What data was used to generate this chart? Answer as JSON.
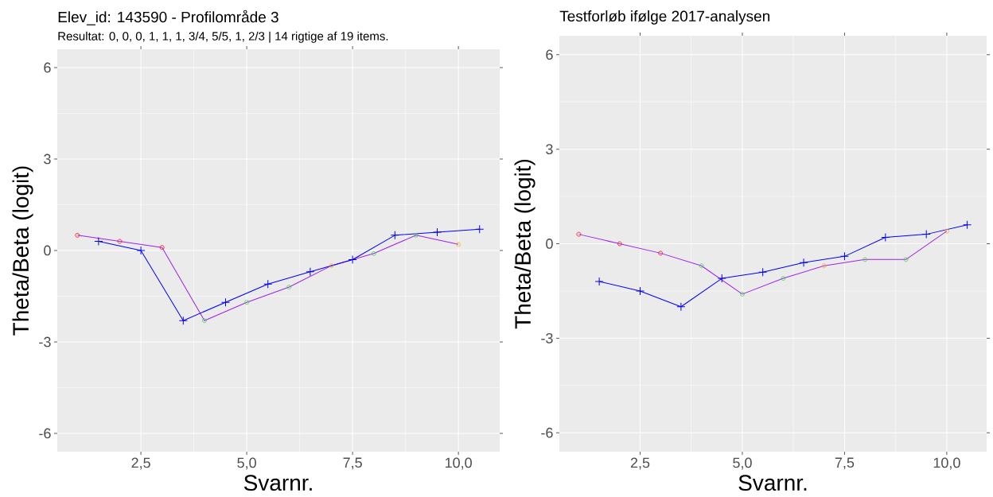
{
  "chart_data": [
    {
      "type": "line",
      "title": "Elev_id: 143590 - Profilområde 3",
      "subtitle": "Resultat: 0, 0, 0, 1, 1, 1, 3/4, 5/5, 1, 2/3 | 14  rigtige af 19 items.",
      "xlabel": "Svarnr.",
      "ylabel": "Theta/Beta (logit)",
      "xlim": [
        0.525,
        10.975
      ],
      "ylim": [
        -6.6,
        6.6
      ],
      "xticks": [
        {
          "value": 2.5,
          "label": "2,5"
        },
        {
          "value": 5,
          "label": "5,0"
        },
        {
          "value": 7.5,
          "label": "7,5"
        },
        {
          "value": 10,
          "label": "10,0"
        }
      ],
      "yticks": [
        -6,
        -3,
        0,
        3,
        6
      ],
      "grid": true,
      "series": [
        {
          "color": "#a020f0",
          "marker": "circle",
          "x": [
            1,
            2,
            3,
            4,
            5,
            6,
            7,
            8,
            9,
            10
          ],
          "values": [
            0.5,
            0.3,
            0.1,
            -2.3,
            -1.7,
            -1.2,
            -0.5,
            -0.1,
            0.5,
            0.2
          ],
          "colors": [
            "#ff0000",
            "#ff0000",
            "#ff0000",
            "#33dd33",
            "#33dd33",
            "#33dd33",
            "#ffa500",
            "#33dd33",
            "#33dd33",
            "#ffa500"
          ]
        },
        {
          "color": "#0000ff",
          "marker": "cross",
          "x": [
            1.5,
            2.5,
            3.5,
            4.5,
            5.5,
            6.5,
            7.5,
            8.5,
            9.5,
            10.5
          ],
          "values": [
            0.3,
            0,
            -2.3,
            -1.7,
            -1.1,
            -0.7,
            -0.3,
            0.5,
            0.6,
            0.7
          ]
        }
      ]
    },
    {
      "type": "line",
      "title": "Testforløb ifølge 2017-analysen",
      "xlabel": "Svarnr.",
      "ylabel": "Theta/Beta (logit)",
      "xlim": [
        0.525,
        10.975
      ],
      "ylim": [
        -6.6,
        6.6
      ],
      "xticks": [
        {
          "value": 2.5,
          "label": "2,5"
        },
        {
          "value": 5,
          "label": "5,0"
        },
        {
          "value": 7.5,
          "label": "7,5"
        },
        {
          "value": 10,
          "label": "10,0"
        }
      ],
      "yticks": [
        -6,
        -3,
        0,
        3,
        6
      ],
      "grid": true,
      "series": [
        {
          "color": "#a020f0",
          "marker": "circle",
          "x": [
            1,
            2,
            3,
            4,
            5,
            6,
            7,
            8,
            9,
            10
          ],
          "values": [
            0.3,
            0.0,
            -0.3,
            -0.7,
            -1.6,
            -1.1,
            -0.7,
            -0.5,
            -0.5,
            0.4
          ],
          "colors": [
            "#ff0000",
            "#ff0000",
            "#ff0000",
            "#33dd33",
            "#33dd33",
            "#33dd33",
            "#ffa500",
            "#33dd33",
            "#33dd33",
            "#ffa500"
          ]
        },
        {
          "color": "#0000ff",
          "marker": "cross",
          "x": [
            1.5,
            2.5,
            3.5,
            4.5,
            5.5,
            6.5,
            7.5,
            8.5,
            9.5,
            10.5
          ],
          "values": [
            -1.2,
            -1.5,
            -2.0,
            -1.1,
            -0.9,
            -0.6,
            -0.4,
            0.2,
            0.3,
            0.6
          ]
        }
      ]
    }
  ]
}
